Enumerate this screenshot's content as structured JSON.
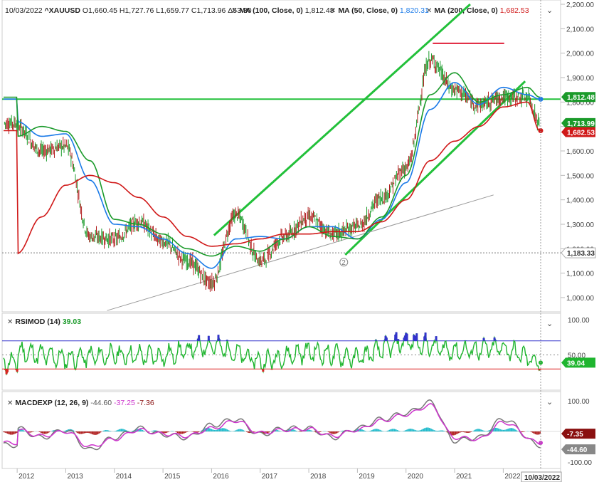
{
  "main": {
    "header": {
      "date": "10/03/2022",
      "symbol": "^XAUUSD",
      "open": "O1,660.45",
      "high": "H1,727.76",
      "low": "L1,659.77",
      "close": "C1,713.96",
      "change": "Δ53.30",
      "ma100_label": "MA (100, Close, 0)",
      "ma100_value": "1,812.48",
      "ma50_label": "MA (50, Close, 0)",
      "ma50_value": "1,820.31",
      "ma200_label": "MA (200, Close, 0)",
      "ma200_value": "1,682.53"
    },
    "y_ticks": [
      "2,200.00",
      "2,100.00",
      "2,000.00",
      "1,900.00",
      "1,800.00",
      "1,700.00",
      "1,600.00",
      "1,500.00",
      "1,400.00",
      "1,300.00",
      "1,200.00",
      "1,100.00",
      "1,000.00"
    ],
    "tags": {
      "ma100": "1,812.48",
      "close": "1,713.99",
      "ma200": "1,682.53",
      "support": "1,183.33"
    },
    "marker": "2"
  },
  "rsi": {
    "title": "RSIMOD (14)",
    "value": "39.03",
    "y_ticks": [
      "100.00",
      "50.00"
    ],
    "tag": "39.04"
  },
  "macd": {
    "title": "MACDEXP (12, 26, 9)",
    "v1": "-44.60",
    "v2": "-37.25",
    "v3": "-7.36",
    "y_ticks": [
      "100.00",
      "-100.00"
    ],
    "tag_signal": "-7.35",
    "tag_macd": "-44.60"
  },
  "x_axis": {
    "labels": [
      "2012",
      "2013",
      "2014",
      "2015",
      "2016",
      "2017",
      "2018",
      "2019",
      "2020",
      "2021",
      "2022"
    ],
    "cursor_date": "10/03/2022"
  },
  "colors": {
    "ma100": "#1a7ae8",
    "ma50": "#1a9a2a",
    "ma200": "#d01818",
    "trend": "#22c03a",
    "resistance": "#e0203a",
    "rsi_over": "#3333cc",
    "rsi_under": "#dd2222",
    "macd": "#777777",
    "signal": "#cc33cc",
    "hist_pos": "#22bbcc",
    "hist_neg": "#b02020"
  },
  "chart_data": [
    {
      "type": "line",
      "title": "^XAUUSD",
      "x": [
        "2012",
        "2012.5",
        "2013",
        "2013.5",
        "2014",
        "2014.5",
        "2015",
        "2015.5",
        "2016",
        "2016.5",
        "2017",
        "2017.5",
        "2018",
        "2018.5",
        "2019",
        "2019.5",
        "2020",
        "2020.5",
        "2021",
        "2021.5",
        "2022",
        "2022.5",
        "2022.75"
      ],
      "series": [
        {
          "name": "^XAUUSD",
          "values": [
            1700,
            1600,
            1620,
            1250,
            1240,
            1310,
            1230,
            1150,
            1060,
            1340,
            1150,
            1250,
            1330,
            1260,
            1290,
            1410,
            1530,
            1970,
            1850,
            1790,
            1820,
            1820,
            1714
          ]
        },
        {
          "name": "MA (100, Close, 0)",
          "values": [
            1720,
            1660,
            1670,
            1480,
            1300,
            1290,
            1240,
            1180,
            1120,
            1240,
            1250,
            1240,
            1290,
            1290,
            1240,
            1320,
            1470,
            1770,
            1880,
            1790,
            1860,
            1830,
            1812
          ]
        },
        {
          "name": "MA (50, Close, 0)",
          "values": [
            1660,
            1700,
            1680,
            1560,
            1320,
            1300,
            1260,
            1200,
            1170,
            1210,
            1190,
            1240,
            1290,
            1250,
            1240,
            1330,
            1500,
            1830,
            1920,
            1800,
            1830,
            1860,
            1820
          ]
        },
        {
          "name": "MA (200, Close, 0)",
          "values": [
            1180,
            1330,
            1460,
            1500,
            1470,
            1410,
            1330,
            1250,
            1210,
            1220,
            1240,
            1260,
            1260,
            1270,
            1270,
            1310,
            1400,
            1560,
            1640,
            1700,
            1780,
            1800,
            1683
          ]
        }
      ],
      "ylim": [
        950,
        2210
      ]
    },
    {
      "type": "line",
      "title": "RSIMOD (14)",
      "x": [
        "2012",
        "2013",
        "2014",
        "2015",
        "2016",
        "2017",
        "2018",
        "2019",
        "2020",
        "2021",
        "2022",
        "2022.75"
      ],
      "series": [
        {
          "name": "RSIMOD (14)",
          "values": [
            55,
            45,
            50,
            48,
            65,
            40,
            55,
            45,
            70,
            55,
            60,
            39.03
          ]
        }
      ],
      "ylim": [
        0,
        100
      ]
    },
    {
      "type": "line",
      "title": "MACDEXP (12, 26, 9)",
      "x": [
        "2012",
        "2012.5",
        "2013",
        "2013.5",
        "2014",
        "2014.5",
        "2015",
        "2015.5",
        "2016",
        "2016.5",
        "2017",
        "2017.5",
        "2018",
        "2018.5",
        "2019",
        "2019.5",
        "2020",
        "2020.5",
        "2021",
        "2021.5",
        "2022",
        "2022.75"
      ],
      "series": [
        {
          "name": "MACD",
          "values": [
            10,
            -20,
            5,
            -60,
            -20,
            10,
            -10,
            -20,
            20,
            40,
            -10,
            10,
            10,
            -20,
            10,
            40,
            60,
            95,
            -30,
            -20,
            40,
            -44.6
          ]
        },
        {
          "name": "Signal",
          "values": [
            5,
            -15,
            0,
            -50,
            -25,
            5,
            -8,
            -15,
            10,
            35,
            -5,
            5,
            8,
            -15,
            5,
            35,
            55,
            85,
            -20,
            -25,
            30,
            -37.25
          ]
        }
      ],
      "ylim": [
        -120,
        120
      ]
    }
  ]
}
